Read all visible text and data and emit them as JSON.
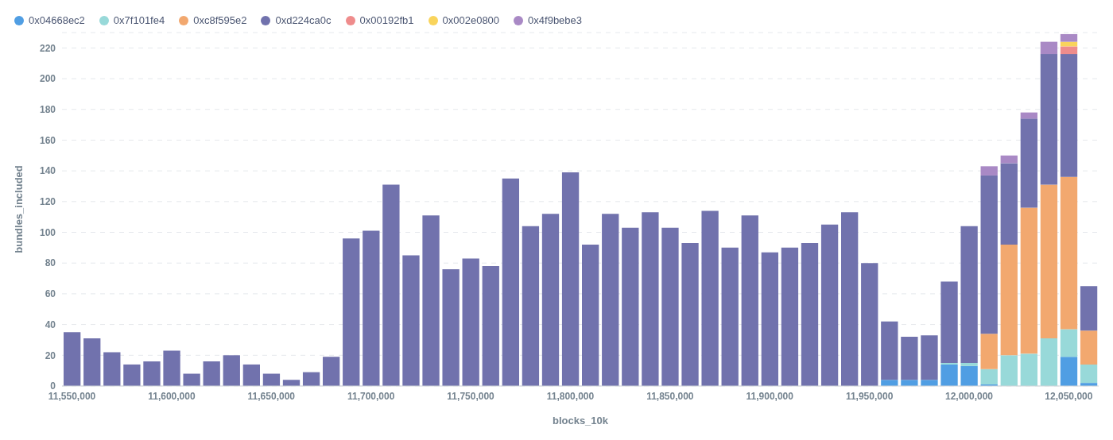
{
  "chart_data": {
    "type": "bar",
    "stacked": true,
    "xlabel": "blocks_10k",
    "ylabel": "bundles_included",
    "x": [
      11550000,
      11560000,
      11570000,
      11580000,
      11590000,
      11600000,
      11610000,
      11620000,
      11630000,
      11640000,
      11650000,
      11660000,
      11670000,
      11680000,
      11690000,
      11700000,
      11710000,
      11720000,
      11730000,
      11740000,
      11750000,
      11760000,
      11770000,
      11780000,
      11790000,
      11800000,
      11810000,
      11820000,
      11830000,
      11840000,
      11850000,
      11860000,
      11870000,
      11880000,
      11890000,
      11900000,
      11910000,
      11920000,
      11930000,
      11940000,
      11950000,
      11960000,
      11970000,
      11980000,
      11990000,
      12000000,
      12010000,
      12020000,
      12030000,
      12040000,
      12050000,
      12060000
    ],
    "series": [
      {
        "name": "0x04668ec2",
        "color": "#509ee3",
        "values": [
          null,
          null,
          null,
          null,
          null,
          null,
          null,
          null,
          null,
          null,
          null,
          null,
          null,
          null,
          null,
          null,
          null,
          null,
          null,
          null,
          null,
          null,
          null,
          null,
          null,
          null,
          null,
          null,
          null,
          null,
          null,
          null,
          null,
          null,
          null,
          null,
          null,
          null,
          null,
          null,
          null,
          4,
          4,
          4,
          14,
          13,
          1,
          null,
          null,
          null,
          19,
          2
        ]
      },
      {
        "name": "0x7f101fe4",
        "color": "#98d9d9",
        "values": [
          null,
          null,
          null,
          null,
          null,
          null,
          null,
          null,
          null,
          null,
          null,
          null,
          null,
          null,
          null,
          null,
          null,
          null,
          null,
          null,
          null,
          null,
          null,
          null,
          null,
          null,
          null,
          null,
          null,
          null,
          null,
          null,
          null,
          null,
          null,
          null,
          null,
          null,
          null,
          null,
          null,
          null,
          null,
          null,
          1,
          2,
          10,
          20,
          21,
          31,
          18,
          12
        ]
      },
      {
        "name": "0xc8f595e2",
        "color": "#f2a86f",
        "values": [
          null,
          null,
          null,
          null,
          null,
          null,
          null,
          null,
          null,
          null,
          null,
          null,
          null,
          null,
          null,
          null,
          null,
          null,
          null,
          null,
          null,
          null,
          null,
          null,
          null,
          null,
          null,
          null,
          null,
          null,
          null,
          null,
          null,
          null,
          null,
          null,
          null,
          null,
          null,
          null,
          null,
          null,
          null,
          null,
          null,
          null,
          23,
          72,
          95,
          100,
          99,
          22
        ]
      },
      {
        "name": "0xd224ca0c",
        "color": "#7172ad",
        "values": [
          35,
          31,
          22,
          14,
          16,
          23,
          8,
          16,
          20,
          14,
          8,
          4,
          9,
          19,
          96,
          101,
          131,
          85,
          111,
          76,
          83,
          78,
          135,
          104,
          112,
          139,
          92,
          112,
          103,
          113,
          103,
          93,
          114,
          90,
          111,
          87,
          90,
          93,
          105,
          113,
          80,
          38,
          28,
          29,
          53,
          89,
          103,
          53,
          58,
          85,
          80,
          29
        ]
      },
      {
        "name": "0x00192fb1",
        "color": "#ef8c8c",
        "values": [
          null,
          null,
          null,
          null,
          null,
          null,
          null,
          null,
          null,
          null,
          null,
          null,
          null,
          null,
          null,
          null,
          null,
          null,
          null,
          null,
          null,
          null,
          null,
          null,
          null,
          null,
          null,
          null,
          null,
          null,
          null,
          null,
          null,
          null,
          null,
          null,
          null,
          null,
          null,
          null,
          null,
          null,
          null,
          null,
          null,
          null,
          null,
          null,
          null,
          null,
          5,
          null
        ]
      },
      {
        "name": "0x002e0800",
        "color": "#f9d45c",
        "values": [
          null,
          null,
          null,
          null,
          null,
          null,
          null,
          null,
          null,
          null,
          null,
          null,
          null,
          null,
          null,
          null,
          null,
          null,
          null,
          null,
          null,
          null,
          null,
          null,
          null,
          null,
          null,
          null,
          null,
          null,
          null,
          null,
          null,
          null,
          null,
          null,
          null,
          null,
          null,
          null,
          null,
          null,
          null,
          null,
          null,
          null,
          null,
          null,
          null,
          null,
          3,
          null
        ]
      },
      {
        "name": "0x4f9bebe3",
        "color": "#a989c5",
        "values": [
          null,
          null,
          null,
          null,
          null,
          null,
          null,
          null,
          null,
          null,
          null,
          null,
          null,
          null,
          null,
          null,
          null,
          null,
          null,
          null,
          null,
          null,
          null,
          null,
          null,
          null,
          null,
          null,
          null,
          null,
          null,
          null,
          null,
          null,
          null,
          null,
          null,
          null,
          null,
          null,
          null,
          null,
          null,
          null,
          null,
          null,
          6,
          5,
          4,
          8,
          5,
          null
        ]
      }
    ],
    "xlim": [
      11545000,
      12065000
    ],
    "xticks": [
      {
        "value": 11550000,
        "label": "11,550,000"
      },
      {
        "value": 11600000,
        "label": "11,600,000"
      },
      {
        "value": 11650000,
        "label": "11,650,000"
      },
      {
        "value": 11700000,
        "label": "11,700,000"
      },
      {
        "value": 11750000,
        "label": "11,750,000"
      },
      {
        "value": 11800000,
        "label": "11,800,000"
      },
      {
        "value": 11850000,
        "label": "11,850,000"
      },
      {
        "value": 11900000,
        "label": "11,900,000"
      },
      {
        "value": 11950000,
        "label": "11,950,000"
      },
      {
        "value": 12000000,
        "label": "12,000,000"
      },
      {
        "value": 12050000,
        "label": "12,050,000"
      }
    ],
    "ylim": [
      0,
      230
    ],
    "yticks": [
      0,
      20,
      40,
      60,
      80,
      100,
      120,
      140,
      160,
      180,
      200,
      220
    ],
    "grid": "y",
    "legend": "top left"
  }
}
